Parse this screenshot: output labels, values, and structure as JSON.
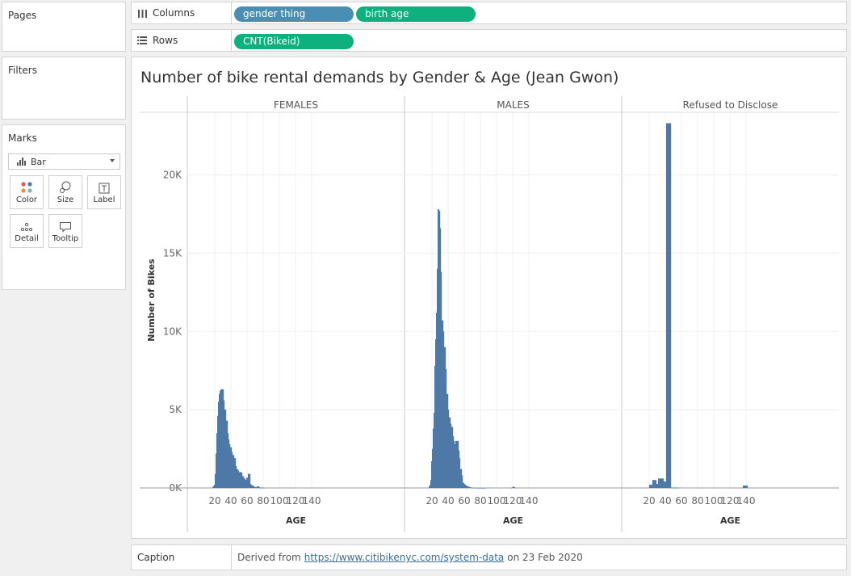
{
  "side": {
    "pages_title": "Pages",
    "filters_title": "Filters",
    "marks_title": "Marks",
    "mark_type": "Bar",
    "mark_buttons": [
      "Color",
      "Size",
      "Label",
      "Detail",
      "Tooltip"
    ]
  },
  "shelves": {
    "columns_label": "Columns",
    "rows_label": "Rows",
    "column_pills": [
      "gender thing",
      "birth age"
    ],
    "row_pills": [
      "CNT(Bikeid)"
    ]
  },
  "colors": {
    "bar": "#4e79a7",
    "pill_dimension": "#4a8fb3",
    "pill_continuous": "#0eb07d"
  },
  "chart_data": {
    "type": "bar",
    "title": "Number of bike rental demands by Gender & Age (Jean Gwon)",
    "ylabel": "Number of Bikes",
    "xlabel": "AGE",
    "yticks": [
      0,
      5000,
      10000,
      15000,
      20000
    ],
    "ytick_labels": [
      "0K",
      "5K",
      "10K",
      "15K",
      "20K"
    ],
    "xticks": [
      20,
      40,
      60,
      80,
      100,
      120,
      140
    ],
    "xlim": [
      10,
      140
    ],
    "ylim": [
      0,
      24000
    ],
    "series": [
      {
        "name": "FEMALES",
        "x": [
          17,
          18,
          19,
          20,
          21,
          22,
          23,
          24,
          25,
          26,
          27,
          28,
          29,
          30,
          31,
          32,
          33,
          34,
          35,
          36,
          37,
          38,
          39,
          40,
          41,
          42,
          43,
          44,
          45,
          46,
          47,
          48,
          49,
          50,
          51,
          52,
          53,
          54,
          55,
          56,
          57,
          58,
          59,
          60,
          61,
          62,
          63,
          64,
          65,
          66,
          67,
          68,
          69,
          70,
          71,
          72,
          73,
          74,
          75,
          76,
          77,
          78,
          79,
          80
        ],
        "values": [
          80,
          120,
          200,
          900,
          2200,
          3500,
          4600,
          5500,
          6000,
          6200,
          6300,
          6300,
          6300,
          5600,
          5000,
          5000,
          4300,
          4300,
          3500,
          3100,
          2800,
          2600,
          2600,
          2300,
          2100,
          2100,
          1900,
          1900,
          1400,
          1200,
          1200,
          1100,
          1000,
          1000,
          1000,
          1000,
          750,
          750,
          600,
          600,
          500,
          500,
          650,
          650,
          900,
          900,
          250,
          200,
          150,
          150,
          100,
          70,
          50,
          40,
          40,
          100,
          100,
          40,
          30,
          20,
          20,
          15,
          10,
          10
        ]
      },
      {
        "name": "MALES",
        "x": [
          16,
          17,
          18,
          19,
          20,
          21,
          22,
          23,
          24,
          25,
          26,
          27,
          28,
          29,
          30,
          31,
          32,
          33,
          34,
          35,
          36,
          37,
          38,
          39,
          40,
          41,
          42,
          43,
          44,
          45,
          46,
          47,
          48,
          49,
          50,
          51,
          52,
          53,
          54,
          55,
          56,
          57,
          58,
          59,
          60,
          61,
          62,
          63,
          64,
          65,
          66,
          67,
          68,
          69,
          70,
          71,
          72,
          73,
          74,
          75,
          76,
          77,
          78,
          79,
          80,
          81,
          82,
          83,
          84,
          85,
          119,
          120,
          121
        ],
        "values": [
          100,
          200,
          500,
          1700,
          2500,
          3800,
          4800,
          7800,
          9500,
          11200,
          14000,
          17800,
          17700,
          16600,
          13800,
          10700,
          10700,
          10000,
          9000,
          9000,
          7600,
          6000,
          6000,
          5000,
          4500,
          4500,
          4100,
          3900,
          3900,
          3300,
          3000,
          2800,
          2800,
          3000,
          3000,
          3000,
          2400,
          1900,
          1200,
          1200,
          800,
          350,
          300,
          250,
          200,
          150,
          120,
          100,
          80,
          60,
          40,
          30,
          20,
          15,
          10,
          8,
          5,
          5,
          5,
          3,
          2,
          2,
          2,
          1,
          1,
          1,
          1,
          1,
          1,
          1,
          40,
          80,
          40
        ]
      },
      {
        "name": "Refused to Disclose",
        "x": [
          20,
          21,
          22,
          23,
          24,
          25,
          26,
          27,
          28,
          29,
          30,
          31,
          32,
          33,
          34,
          35,
          36,
          37,
          38,
          39,
          40,
          41,
          42,
          43,
          44,
          45,
          46,
          47,
          48,
          49,
          50,
          51,
          52,
          53,
          54,
          55,
          136,
          137,
          138,
          139,
          140
        ],
        "values": [
          200,
          200,
          200,
          200,
          500,
          500,
          500,
          500,
          250,
          250,
          250,
          600,
          600,
          600,
          600,
          600,
          600,
          400,
          400,
          400,
          400,
          23300,
          23300,
          23300,
          23300,
          23300,
          20,
          20,
          20,
          20,
          20,
          20,
          20,
          20,
          20,
          20,
          150,
          150,
          150,
          150,
          150
        ]
      }
    ]
  },
  "caption": {
    "label": "Caption",
    "prefix": "Derived from",
    "link": "https://www.citibikenyc.com/system-data",
    "suffix": "on 23 Feb 2020"
  }
}
